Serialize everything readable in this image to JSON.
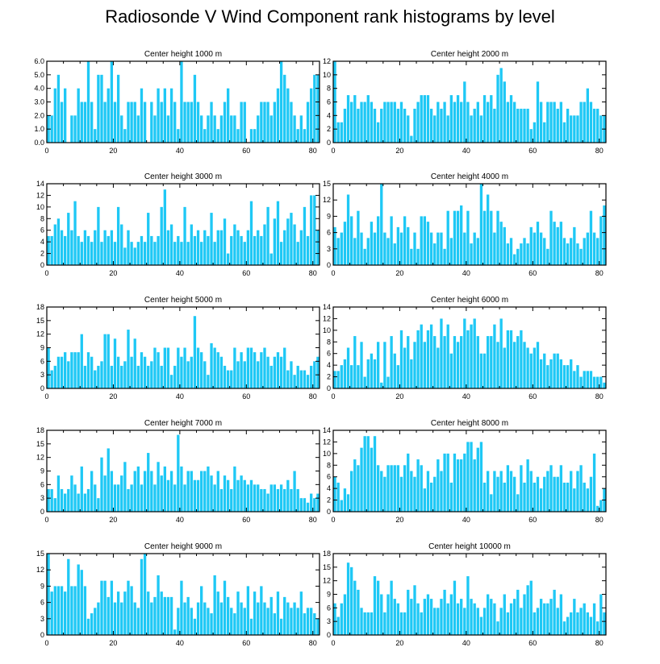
{
  "title": "Radiosonde V Wind Component rank histograms by level",
  "bar_color": "#1ec8f5",
  "chart_data": [
    {
      "type": "bar",
      "title": "Center height 1000 m",
      "xlim": [
        0,
        82
      ],
      "ylim": [
        0,
        6
      ],
      "yticks": [
        "0.0",
        "1.0",
        "2.0",
        "3.0",
        "4.0",
        "5.0",
        "6.0"
      ],
      "xticks": [
        0,
        20,
        40,
        60,
        80
      ],
      "values": [
        2,
        2,
        4,
        5,
        3,
        4,
        0,
        2,
        2,
        4,
        3,
        3,
        6,
        3,
        1,
        5,
        5,
        3,
        4,
        6,
        3,
        5,
        2,
        1,
        3,
        3,
        3,
        2,
        4,
        3,
        0,
        3,
        2,
        4,
        3,
        4,
        2,
        4,
        3,
        1,
        6,
        3,
        3,
        3,
        5,
        3,
        2,
        1,
        2,
        3,
        2,
        1,
        2,
        3,
        4,
        2,
        2,
        1,
        3,
        3,
        0,
        1,
        1,
        2,
        3,
        3,
        3,
        2,
        3,
        4,
        6,
        5,
        4,
        3,
        2,
        1,
        2,
        1,
        3,
        4,
        5,
        5
      ]
    },
    {
      "type": "bar",
      "title": "Center height 2000 m",
      "xlim": [
        0,
        82
      ],
      "ylim": [
        0,
        12
      ],
      "yticks": [
        "0",
        "2",
        "4",
        "6",
        "8",
        "10",
        "12"
      ],
      "xticks": [
        0,
        20,
        40,
        60,
        80
      ],
      "values": [
        12,
        3,
        3,
        5,
        7,
        6,
        7,
        5,
        6,
        6,
        7,
        6,
        5,
        3,
        5,
        6,
        6,
        6,
        6,
        5,
        6,
        5,
        4,
        1,
        5,
        6,
        7,
        7,
        7,
        5,
        4,
        6,
        5,
        6,
        4,
        7,
        6,
        7,
        6,
        9,
        6,
        4,
        5,
        6,
        4,
        7,
        6,
        7,
        5,
        10,
        11,
        9,
        6,
        7,
        6,
        5,
        5,
        5,
        5,
        2,
        3,
        9,
        6,
        3,
        6,
        6,
        6,
        5,
        6,
        3,
        5,
        4,
        4,
        4,
        6,
        6,
        8,
        6,
        5,
        5,
        4,
        4
      ]
    },
    {
      "type": "bar",
      "title": "Center height 3000 m",
      "xlim": [
        0,
        82
      ],
      "ylim": [
        0,
        14
      ],
      "yticks": [
        "0",
        "2",
        "4",
        "6",
        "8",
        "10",
        "12",
        "14"
      ],
      "xticks": [
        0,
        20,
        40,
        60,
        80
      ],
      "values": [
        5,
        5,
        7,
        8,
        6,
        5,
        9,
        6,
        11,
        5,
        4,
        6,
        5,
        4,
        6,
        10,
        4,
        6,
        5,
        6,
        4,
        10,
        7,
        3,
        6,
        4,
        3,
        4,
        5,
        4,
        9,
        5,
        4,
        5,
        10,
        13,
        6,
        7,
        4,
        5,
        4,
        10,
        4,
        7,
        5,
        6,
        4,
        6,
        5,
        9,
        4,
        6,
        6,
        8,
        2,
        5,
        7,
        6,
        5,
        4,
        6,
        11,
        5,
        6,
        5,
        7,
        10,
        2,
        8,
        11,
        4,
        6,
        8,
        9,
        7,
        4,
        6,
        10,
        5,
        12,
        12,
        6
      ]
    },
    {
      "type": "bar",
      "title": "Center height 4000 m",
      "xlim": [
        0,
        82
      ],
      "ylim": [
        0,
        15
      ],
      "yticks": [
        "0",
        "3",
        "6",
        "9",
        "12",
        "15"
      ],
      "xticks": [
        0,
        20,
        40,
        60,
        80
      ],
      "values": [
        7,
        5,
        6,
        8,
        13,
        9,
        5,
        10,
        6,
        3,
        5,
        8,
        6,
        9,
        15,
        6,
        5,
        9,
        4,
        7,
        6,
        9,
        7,
        3,
        6,
        3,
        9,
        9,
        8,
        6,
        4,
        6,
        6,
        3,
        10,
        5,
        10,
        10,
        11,
        6,
        10,
        4,
        6,
        5,
        15,
        10,
        13,
        10,
        6,
        10,
        8,
        7,
        4,
        5,
        2,
        3,
        4,
        5,
        4,
        7,
        6,
        8,
        6,
        5,
        3,
        10,
        8,
        7,
        8,
        5,
        4,
        5,
        7,
        4,
        3,
        5,
        6,
        10,
        6,
        5,
        9,
        11
      ]
    },
    {
      "type": "bar",
      "title": "Center height 5000 m",
      "xlim": [
        0,
        82
      ],
      "ylim": [
        0,
        18
      ],
      "yticks": [
        "0",
        "3",
        "6",
        "9",
        "12",
        "15",
        "18"
      ],
      "xticks": [
        0,
        20,
        40,
        60,
        80
      ],
      "values": [
        9,
        4,
        5,
        7,
        7,
        8,
        6,
        8,
        8,
        8,
        12,
        5,
        8,
        7,
        4,
        5,
        6,
        12,
        12,
        5,
        11,
        7,
        5,
        6,
        13,
        7,
        11,
        5,
        8,
        7,
        5,
        6,
        9,
        8,
        5,
        9,
        9,
        3,
        5,
        9,
        7,
        9,
        6,
        7,
        16,
        9,
        8,
        6,
        3,
        10,
        9,
        8,
        7,
        5,
        4,
        4,
        9,
        6,
        8,
        6,
        9,
        9,
        8,
        6,
        8,
        9,
        7,
        5,
        7,
        8,
        7,
        9,
        4,
        6,
        3,
        5,
        4,
        4,
        3,
        5,
        6,
        7
      ]
    },
    {
      "type": "bar",
      "title": "Center height 6000 m",
      "xlim": [
        0,
        82
      ],
      "ylim": [
        0,
        14
      ],
      "yticks": [
        "0",
        "2",
        "4",
        "6",
        "8",
        "10",
        "12",
        "14"
      ],
      "xticks": [
        0,
        20,
        40,
        60,
        80
      ],
      "values": [
        3,
        3,
        4,
        5,
        7,
        4,
        9,
        4,
        8,
        2,
        5,
        6,
        5,
        8,
        1,
        8,
        2,
        9,
        6,
        4,
        10,
        7,
        9,
        5,
        8,
        10,
        11,
        8,
        10,
        11,
        9,
        7,
        12,
        9,
        11,
        6,
        9,
        8,
        9,
        12,
        10,
        11,
        12,
        9,
        6,
        6,
        9,
        9,
        11,
        8,
        12,
        7,
        10,
        10,
        8,
        9,
        10,
        8,
        7,
        6,
        7,
        8,
        5,
        6,
        4,
        5,
        6,
        6,
        5,
        4,
        4,
        5,
        3,
        4,
        2,
        3,
        3,
        3,
        2,
        2,
        2,
        1
      ]
    },
    {
      "type": "bar",
      "title": "Center height 7000 m",
      "xlim": [
        0,
        82
      ],
      "ylim": [
        0,
        18
      ],
      "yticks": [
        "0",
        "3",
        "6",
        "9",
        "12",
        "15",
        "18"
      ],
      "xticks": [
        0,
        20,
        40,
        60,
        80
      ],
      "values": [
        5,
        5,
        3,
        8,
        5,
        4,
        5,
        8,
        6,
        4,
        10,
        4,
        5,
        9,
        6,
        3,
        12,
        8,
        14,
        9,
        6,
        6,
        8,
        11,
        5,
        6,
        9,
        10,
        6,
        9,
        13,
        9,
        6,
        11,
        8,
        10,
        7,
        9,
        6,
        17,
        10,
        6,
        9,
        9,
        7,
        7,
        9,
        9,
        10,
        8,
        6,
        9,
        5,
        8,
        7,
        5,
        10,
        7,
        8,
        7,
        6,
        7,
        6,
        6,
        5,
        5,
        4,
        6,
        6,
        5,
        6,
        5,
        7,
        5,
        9,
        5,
        3,
        3,
        2,
        4,
        3,
        4
      ]
    },
    {
      "type": "bar",
      "title": "Center height 8000 m",
      "xlim": [
        0,
        82
      ],
      "ylim": [
        0,
        14
      ],
      "yticks": [
        "0",
        "2",
        "4",
        "6",
        "8",
        "10",
        "12",
        "14"
      ],
      "xticks": [
        0,
        20,
        40,
        60,
        80
      ],
      "values": [
        6,
        5,
        2,
        4,
        3,
        7,
        9,
        8,
        11,
        13,
        13,
        11,
        13,
        8,
        7,
        6,
        8,
        8,
        8,
        8,
        6,
        8,
        10,
        7,
        6,
        9,
        8,
        4,
        7,
        5,
        6,
        9,
        7,
        10,
        10,
        5,
        10,
        9,
        9,
        10,
        12,
        12,
        9,
        11,
        12,
        5,
        7,
        3,
        7,
        6,
        7,
        5,
        8,
        7,
        6,
        3,
        8,
        5,
        9,
        7,
        5,
        6,
        4,
        6,
        7,
        8,
        6,
        6,
        8,
        5,
        5,
        7,
        4,
        7,
        8,
        5,
        4,
        6,
        10,
        1,
        2,
        4
      ]
    },
    {
      "type": "bar",
      "title": "Center height 9000 m",
      "xlim": [
        0,
        82
      ],
      "ylim": [
        0,
        15
      ],
      "yticks": [
        "0",
        "3",
        "6",
        "9",
        "12",
        "15"
      ],
      "xticks": [
        0,
        20,
        40,
        60,
        80
      ],
      "values": [
        15,
        8,
        9,
        9,
        9,
        8,
        14,
        9,
        9,
        13,
        12,
        9,
        3,
        4,
        5,
        6,
        10,
        10,
        7,
        10,
        6,
        8,
        6,
        8,
        10,
        9,
        6,
        5,
        14,
        15,
        8,
        6,
        7,
        11,
        8,
        7,
        7,
        7,
        1,
        5,
        10,
        6,
        7,
        5,
        3,
        6,
        9,
        6,
        5,
        4,
        11,
        8,
        6,
        10,
        7,
        5,
        4,
        8,
        6,
        5,
        9,
        3,
        8,
        6,
        9,
        6,
        5,
        7,
        4,
        8,
        3,
        7,
        6,
        5,
        6,
        5,
        8,
        4,
        5,
        5,
        4,
        3
      ]
    },
    {
      "type": "bar",
      "title": "Center height 10000 m",
      "xlim": [
        0,
        82
      ],
      "ylim": [
        0,
        18
      ],
      "yticks": [
        "0",
        "3",
        "6",
        "9",
        "12",
        "15",
        "18"
      ],
      "xticks": [
        0,
        20,
        40,
        60,
        80
      ],
      "values": [
        7,
        4,
        7,
        9,
        16,
        15,
        12,
        10,
        6,
        5,
        5,
        5,
        13,
        12,
        9,
        5,
        9,
        12,
        8,
        7,
        5,
        5,
        10,
        8,
        11,
        7,
        5,
        8,
        9,
        8,
        6,
        6,
        8,
        10,
        7,
        9,
        12,
        7,
        8,
        6,
        13,
        8,
        7,
        6,
        4,
        6,
        9,
        8,
        7,
        3,
        6,
        9,
        5,
        7,
        8,
        10,
        6,
        9,
        11,
        12,
        5,
        6,
        8,
        7,
        7,
        8,
        10,
        6,
        9,
        3,
        4,
        5,
        8,
        5,
        6,
        7,
        5,
        4,
        7,
        3,
        9,
        5
      ]
    }
  ]
}
